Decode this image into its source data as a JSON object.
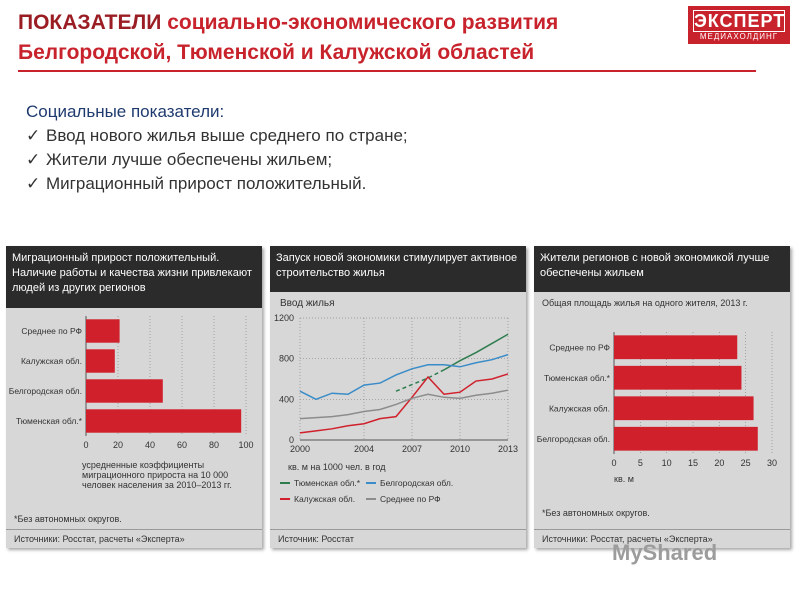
{
  "title": {
    "line1_accent": "ПОКАЗАТЕЛИ",
    "line1_rest": "социально-экономического развития",
    "line2": "Белгородской, Тюменской и Калужской областей"
  },
  "logo": {
    "brand": "ЭКСПЕРТ",
    "sub": "МЕДИАХОЛДИНГ"
  },
  "bullets": {
    "heading": "Социальные показатели:",
    "check_glyph": "✓",
    "items": [
      "Ввод нового жилья выше среднего по стране;",
      "Жители лучше обеспечены жильем;",
      "Миграционный прирост положительный."
    ]
  },
  "panel1": {
    "header": "Миграционный прирост положительный. Наличие работы и качества жизни привлекают людей из других регионов",
    "caption": "усредненные коэффициенты миграционного прироста на 10 000 человек населения за 2010–2013 гг.",
    "note": "*Без автономных округов.",
    "source": "Источники: Росстат, расчеты «Эксперта»"
  },
  "panel2": {
    "header": "Запуск новой экономики стимулирует активное строительство жилья",
    "subtitle": "Ввод жилья",
    "units": "кв. м на 1000 чел. в год",
    "source": "Источник: Росстат"
  },
  "panel3": {
    "header": "Жители регионов с новой экономикой лучше обеспечены жильем",
    "subtitle": "Общая площадь жилья на одного жителя, 2013 г.",
    "units": "кв. м",
    "note": "*Без автономных округов.",
    "source": "Источники: Росстат, расчеты «Эксперта»"
  },
  "watermark": "MyShared",
  "colors": {
    "brand": "#c8232c",
    "bar": "#d0202b",
    "green": "#2e7d4f",
    "blue": "#3a8cc8",
    "gray": "#8c8c8c"
  },
  "chart_data": [
    {
      "type": "bar",
      "orientation": "horizontal",
      "categories": [
        "Среднее по РФ",
        "Калужская обл.",
        "Белгородская обл.",
        "Тюменская обл.*"
      ],
      "values": [
        21,
        18,
        48,
        97
      ],
      "xlim": [
        0,
        100
      ],
      "xticks": [
        "0",
        "20",
        "40",
        "60",
        "80",
        "100"
      ],
      "color": "#d0202b"
    },
    {
      "type": "line",
      "x_ticks": [
        "2000",
        "2004",
        "2007",
        "2010",
        "2013"
      ],
      "ylim": [
        0,
        1200
      ],
      "y_ticks": [
        "0",
        "400",
        "800",
        "1200"
      ],
      "legend": [
        "Тюменская обл.*",
        "Белгородская обл.",
        "Калужская обл.",
        "Среднее по РФ"
      ],
      "series": [
        {
          "name": "Тюменская обл.*",
          "color": "#2e7d4f",
          "x": [
            2006,
            2008,
            2009,
            2010,
            2011,
            2012,
            2013
          ],
          "y": [
            480,
            610,
            690,
            780,
            860,
            950,
            1040
          ],
          "dashed_until": 2009
        },
        {
          "name": "Белгородская обл.",
          "color": "#3a8cc8",
          "x": [
            2000,
            2001,
            2002,
            2003,
            2004,
            2005,
            2006,
            2007,
            2008,
            2009,
            2010,
            2011,
            2012,
            2013
          ],
          "y": [
            480,
            400,
            460,
            450,
            540,
            560,
            640,
            700,
            740,
            740,
            720,
            760,
            790,
            840
          ]
        },
        {
          "name": "Калужская обл.",
          "color": "#d0202b",
          "x": [
            2000,
            2001,
            2002,
            2003,
            2004,
            2005,
            2006,
            2007,
            2008,
            2009,
            2010,
            2011,
            2012,
            2013
          ],
          "y": [
            70,
            90,
            110,
            140,
            160,
            210,
            230,
            420,
            620,
            450,
            470,
            580,
            600,
            650
          ]
        },
        {
          "name": "Среднее по РФ",
          "color": "#8c8c8c",
          "x": [
            2000,
            2001,
            2002,
            2003,
            2004,
            2005,
            2006,
            2007,
            2008,
            2009,
            2010,
            2011,
            2012,
            2013
          ],
          "y": [
            210,
            220,
            230,
            250,
            280,
            300,
            350,
            410,
            450,
            420,
            410,
            440,
            460,
            490
          ]
        }
      ]
    },
    {
      "type": "bar",
      "orientation": "horizontal",
      "categories": [
        "Среднее по РФ",
        "Тюменская обл.*",
        "Калужская обл.",
        "Белгородская обл."
      ],
      "values": [
        23.4,
        24.2,
        26.5,
        27.3
      ],
      "xlim": [
        0,
        30
      ],
      "xticks": [
        "0",
        "5",
        "10",
        "15",
        "20",
        "25",
        "30"
      ],
      "color": "#d0202b"
    }
  ]
}
